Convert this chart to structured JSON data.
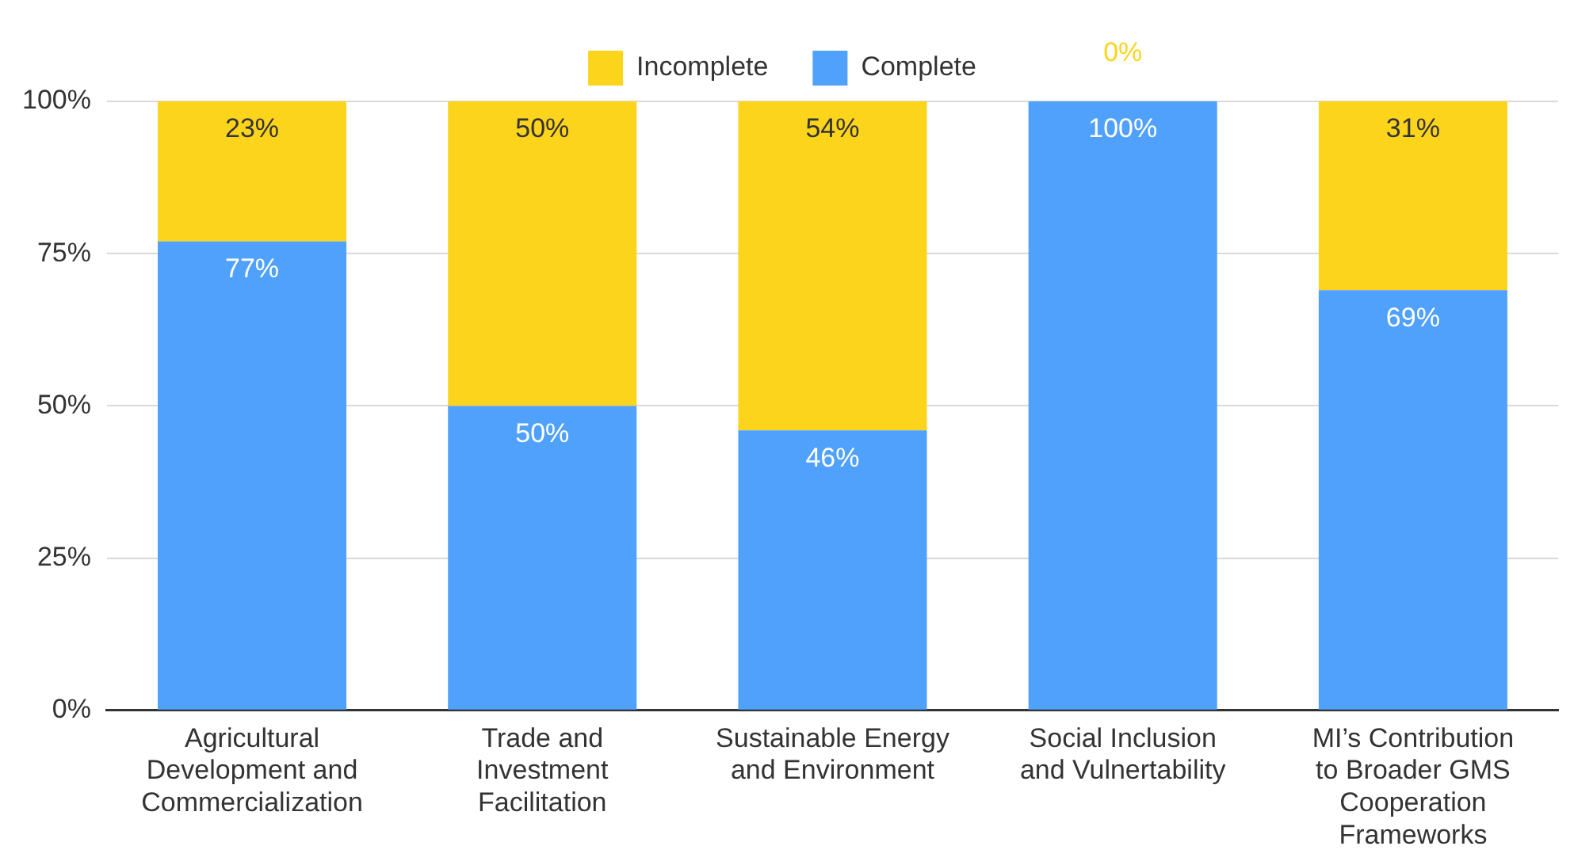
{
  "chart_data": {
    "type": "bar",
    "stacked": true,
    "categories": [
      "Agricultural Development and Commercialization",
      "Trade and Investment Facilitation",
      "Sustainable Energy and Environment",
      "Social Inclusion and Vulnertability",
      "MI’s Contribution to Broader GMS Cooperation Frameworks"
    ],
    "series": [
      {
        "name": "Complete",
        "color": "#4fa1fb",
        "values": [
          77,
          50,
          46,
          100,
          69
        ],
        "value_labels": [
          "77%",
          "50%",
          "46%",
          "100%",
          "69%"
        ]
      },
      {
        "name": "Incomplete",
        "color": "#fdd41c",
        "values": [
          23,
          50,
          54,
          0,
          31
        ],
        "value_labels": [
          "23%",
          "50%",
          "54%",
          "0%",
          "31%"
        ]
      }
    ],
    "ylim": [
      0,
      100
    ],
    "yticks": [
      {
        "value": 0,
        "label": "0%"
      },
      {
        "value": 25,
        "label": "25%"
      },
      {
        "value": 50,
        "label": "50%"
      },
      {
        "value": 75,
        "label": "75%"
      },
      {
        "value": 100,
        "label": "100%"
      }
    ],
    "grid": "y",
    "legend": "top"
  }
}
